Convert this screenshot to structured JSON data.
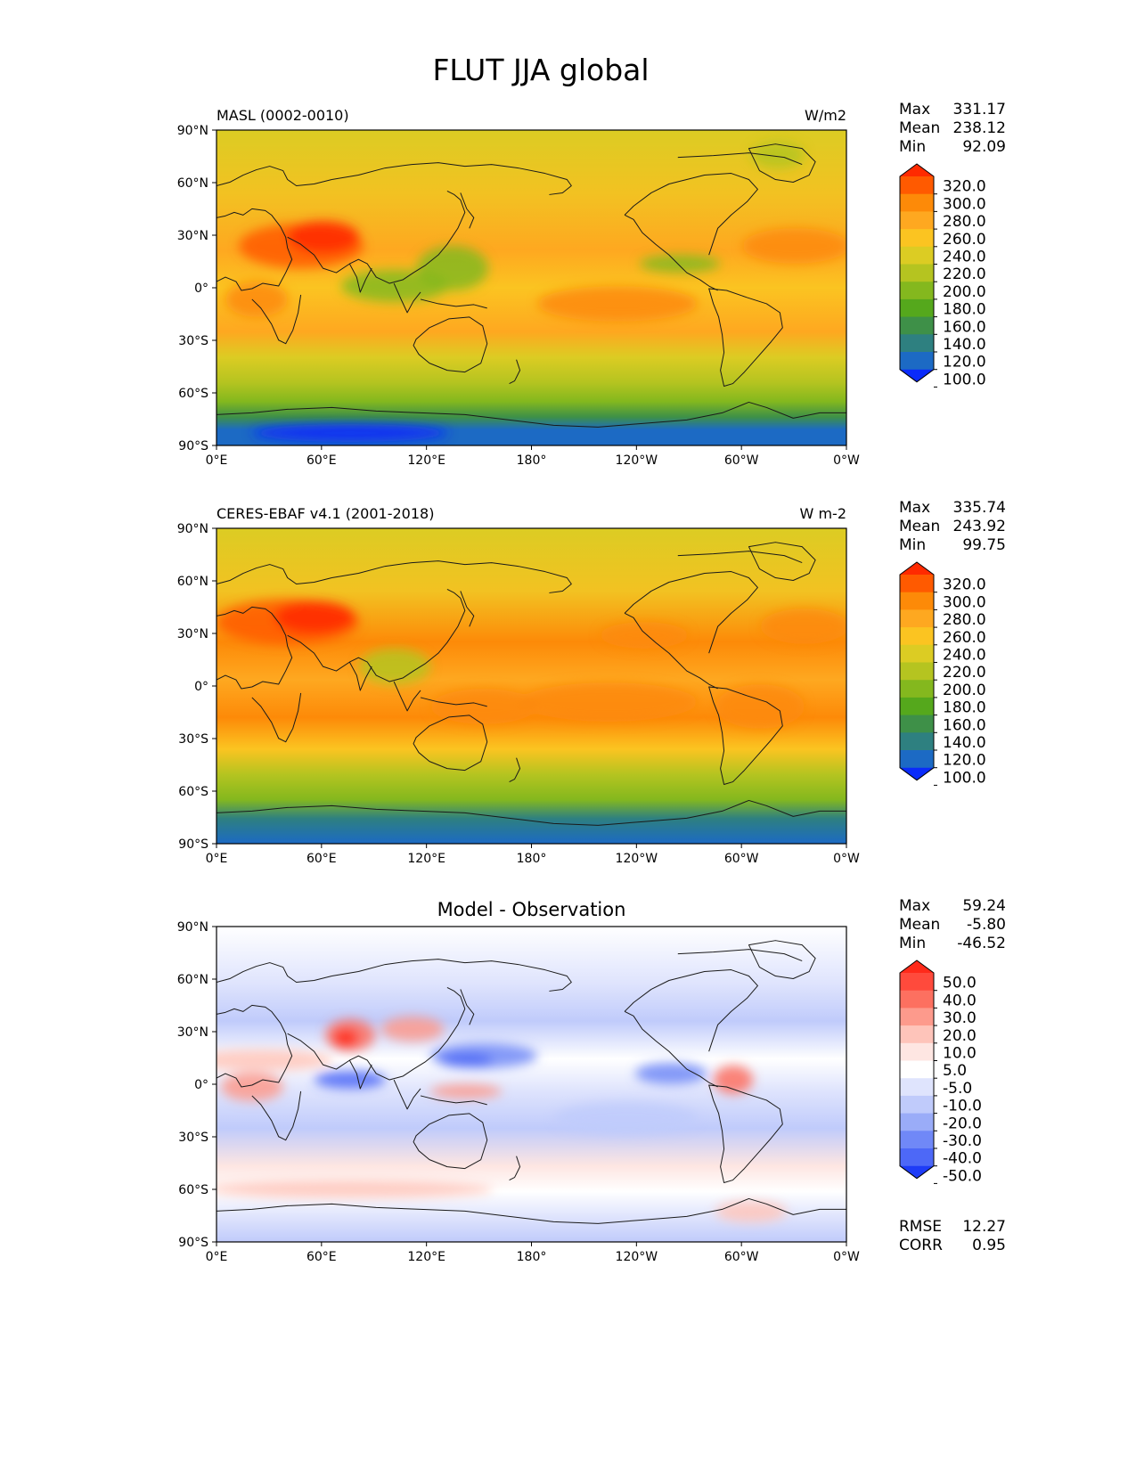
{
  "figure": {
    "title": "FLUT JJA global"
  },
  "axes": {
    "lat_ticks": [
      "90°N",
      "60°N",
      "30°N",
      "0°",
      "30°S",
      "60°S",
      "90°S"
    ],
    "lon_ticks": [
      "0°E",
      "60°E",
      "120°E",
      "180°",
      "120°W",
      "60°W",
      "0°W"
    ]
  },
  "panels": [
    {
      "left_title": "MASL (0002-0010)",
      "center_title": "",
      "units": "W/m2",
      "stats": [
        {
          "label": "Max",
          "value": "331.17"
        },
        {
          "label": "Mean",
          "value": "238.12"
        },
        {
          "label": "Min",
          "value": "92.09"
        }
      ],
      "colorbar": {
        "levels": [
          "320.0",
          "300.0",
          "280.0",
          "260.0",
          "240.0",
          "220.0",
          "200.0",
          "180.0",
          "160.0",
          "140.0",
          "120.0",
          "100.0"
        ],
        "colors": [
          "#ff2a00",
          "#ff5a00",
          "#fd8a08",
          "#fea820",
          "#fbc421",
          "#dccc23",
          "#b5c420",
          "#84b81e",
          "#55a81c",
          "#3e9048",
          "#2e8080",
          "#1c6ac4",
          "#0a2bfa"
        ]
      },
      "extra_stats": []
    },
    {
      "left_title": "CERES-EBAF v4.1 (2001-2018)",
      "center_title": "",
      "units": "W m-2",
      "stats": [
        {
          "label": "Max",
          "value": "335.74"
        },
        {
          "label": "Mean",
          "value": "243.92"
        },
        {
          "label": "Min",
          "value": "99.75"
        }
      ],
      "colorbar": {
        "levels": [
          "320.0",
          "300.0",
          "280.0",
          "260.0",
          "240.0",
          "220.0",
          "200.0",
          "180.0",
          "160.0",
          "140.0",
          "120.0",
          "100.0"
        ],
        "colors": [
          "#ff2a00",
          "#ff5a00",
          "#fd8a08",
          "#fea820",
          "#fbc421",
          "#dccc23",
          "#b5c420",
          "#84b81e",
          "#55a81c",
          "#3e9048",
          "#2e8080",
          "#1c6ac4",
          "#0a2bfa"
        ]
      },
      "extra_stats": []
    },
    {
      "left_title": "",
      "center_title": "Model - Observation",
      "units": "",
      "stats": [
        {
          "label": "Max",
          "value": "59.24"
        },
        {
          "label": "Mean",
          "value": "-5.80"
        },
        {
          "label": "Min",
          "value": "-46.52"
        }
      ],
      "colorbar": {
        "levels": [
          "50.0",
          "40.0",
          "30.0",
          "20.0",
          "10.0",
          "5.0",
          "-5.0",
          "-10.0",
          "-20.0",
          "-30.0",
          "-40.0",
          "-50.0"
        ],
        "colors": [
          "#ff2a1a",
          "#ff4a3c",
          "#fd7060",
          "#fd9a8c",
          "#fec4ba",
          "#fee6e2",
          "#ffffff",
          "#dfe4fd",
          "#c0cbfb",
          "#9aacf8",
          "#7088f7",
          "#4d68f7",
          "#1e3cf7"
        ]
      },
      "extra_stats": [
        {
          "label": "RMSE",
          "value": "12.27"
        },
        {
          "label": "CORR",
          "value": "0.95"
        }
      ]
    }
  ]
}
